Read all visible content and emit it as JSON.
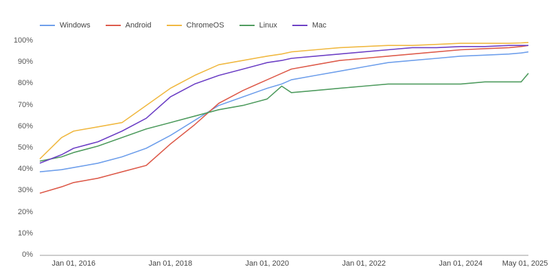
{
  "chart_data": {
    "type": "line",
    "title": "",
    "xlabel": "",
    "ylabel": "",
    "ylim": [
      0,
      100
    ],
    "grid": false,
    "legend_position": "top-left",
    "y_ticks": [
      "0%",
      "10%",
      "20%",
      "30%",
      "40%",
      "50%",
      "60%",
      "70%",
      "80%",
      "90%",
      "100%"
    ],
    "x_ticks": [
      "Jan 01, 2016",
      "Jan 01, 2018",
      "Jan 01, 2020",
      "Jan 01, 2022",
      "Jan 01, 2024",
      "May 01, 2025"
    ],
    "x": [
      2015.3,
      2015.75,
      2016.0,
      2016.5,
      2017.0,
      2017.5,
      2018.0,
      2018.5,
      2019.0,
      2019.5,
      2020.0,
      2020.3,
      2020.5,
      2021.0,
      2021.5,
      2022.0,
      2022.5,
      2023.0,
      2023.5,
      2024.0,
      2024.5,
      2025.0,
      2025.25,
      2025.4
    ],
    "series": [
      {
        "name": "Windows",
        "color": "#6d9eeb",
        "values": [
          39,
          40,
          41,
          43,
          46,
          50,
          56,
          63,
          70,
          74,
          78,
          80,
          82,
          84,
          86,
          88,
          90,
          91,
          92,
          93,
          93.5,
          94,
          94.5,
          95
        ]
      },
      {
        "name": "Android",
        "color": "#dd5a4a",
        "values": [
          29,
          32,
          34,
          36,
          39,
          42,
          52,
          61,
          71,
          77,
          82,
          85,
          87,
          89,
          91,
          92,
          93,
          94,
          95,
          96,
          96.5,
          97,
          97.5,
          98
        ]
      },
      {
        "name": "ChromeOS",
        "color": "#f0b840",
        "values": [
          45,
          55,
          58,
          60,
          62,
          70,
          78,
          84,
          89,
          91,
          93,
          94,
          95,
          96,
          97,
          97.5,
          98,
          98,
          98.5,
          99,
          99,
          99,
          99.2,
          99.4
        ]
      },
      {
        "name": "Linux",
        "color": "#4e9b5e",
        "values": [
          44,
          46,
          48,
          51,
          55,
          59,
          62,
          65,
          68,
          70,
          73,
          79,
          76,
          77,
          78,
          79,
          80,
          80,
          80,
          80,
          81,
          81,
          81,
          85
        ]
      },
      {
        "name": "Mac",
        "color": "#6c3fc5",
        "values": [
          43,
          47,
          50,
          53,
          58,
          64,
          74,
          80,
          84,
          87,
          90,
          91,
          92,
          93,
          94,
          95,
          96,
          97,
          97,
          97.5,
          97.5,
          98,
          98,
          98
        ]
      }
    ]
  },
  "axis": {
    "x_start": 2015.3,
    "x_end": 2025.4
  }
}
